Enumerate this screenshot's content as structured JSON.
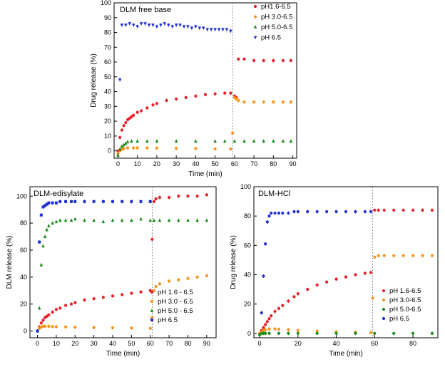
{
  "chart_data": [
    {
      "type": "scatter",
      "title": "DLM free base",
      "xlabel": "Time (min)",
      "ylabel": "Drug release (%)",
      "xlim": [
        -2,
        92
      ],
      "ylim": [
        -5,
        100
      ],
      "xticks": [
        0,
        10,
        20,
        30,
        40,
        50,
        60,
        70,
        80,
        90
      ],
      "yticks": [
        0,
        10,
        20,
        30,
        40,
        50,
        60,
        70,
        80,
        90,
        100
      ],
      "xtick_labels": [
        "0",
        "10",
        "20",
        "30",
        "40",
        "50",
        "60",
        "70",
        "80",
        "90"
      ],
      "ytick_labels": [
        "0",
        "10",
        "20",
        "30",
        "40",
        "50",
        "60",
        "70",
        "80",
        "90",
        "100"
      ],
      "vline": 59,
      "legend_position": "top-right",
      "series": [
        {
          "name": "pH1.6-6.5",
          "color": "#e8202a",
          "marker": "circle",
          "x": [
            0,
            1,
            2,
            3,
            4,
            5,
            6,
            7,
            8,
            10,
            12,
            15,
            18,
            20,
            25,
            30,
            35,
            40,
            45,
            50,
            55,
            58,
            60,
            61,
            62,
            65,
            70,
            75,
            80,
            85,
            89
          ],
          "y": [
            0,
            9,
            14,
            17,
            19,
            21,
            22,
            23,
            24,
            26,
            27,
            29,
            31,
            32,
            34,
            35,
            36,
            37,
            38,
            38.5,
            39,
            39,
            37,
            36,
            62,
            62,
            61,
            61,
            61,
            61,
            61
          ]
        },
        {
          "name": "pH 3.0-6.5",
          "color": "#f7941d",
          "marker": "circle",
          "x": [
            0,
            1,
            2,
            3,
            5,
            8,
            10,
            15,
            20,
            30,
            40,
            50,
            58,
            59,
            60,
            61,
            62,
            65,
            70,
            75,
            80,
            85,
            89
          ],
          "y": [
            -2,
            0,
            1,
            1.5,
            2,
            2,
            2,
            2,
            1.8,
            1.6,
            1.5,
            1.3,
            1.2,
            12,
            36,
            35,
            34,
            33,
            33,
            33,
            33,
            33,
            33
          ]
        },
        {
          "name": "pH 5.0-6.5",
          "color": "#1a8a1a",
          "marker": "triangle",
          "x": [
            0,
            1,
            2,
            3,
            4,
            5,
            7,
            10,
            15,
            20,
            30,
            40,
            50,
            55,
            60,
            65,
            70,
            75,
            80,
            85,
            89
          ],
          "y": [
            -3,
            1,
            3,
            4,
            5,
            6,
            6.5,
            6.5,
            6.5,
            6.5,
            6.5,
            6.5,
            6.5,
            6.5,
            6.5,
            6.5,
            6.5,
            6.5,
            6.5,
            6.5,
            6.5
          ]
        },
        {
          "name": "pH 6.5",
          "color": "#1f2fd6",
          "marker": "triangle-down",
          "x": [
            1,
            2,
            4,
            6,
            8,
            10,
            12,
            14,
            16,
            18,
            20,
            22,
            24,
            26,
            28,
            30,
            32,
            34,
            36,
            38,
            40,
            42,
            44,
            46,
            48,
            50,
            52,
            54,
            56,
            58
          ],
          "y": [
            48,
            85,
            85,
            86,
            85,
            84,
            86,
            86,
            85,
            85,
            84,
            85,
            86,
            85,
            84,
            85,
            85,
            84,
            84,
            83,
            84,
            83,
            83,
            82,
            82,
            82,
            82,
            82,
            82,
            81
          ]
        }
      ]
    },
    {
      "type": "scatter",
      "title": "DLM-edisylate",
      "xlabel": "Time (min)",
      "ylabel": "DLM release (%)",
      "xlim": [
        -4,
        95
      ],
      "ylim": [
        -5,
        107
      ],
      "xticks": [
        0,
        10,
        20,
        30,
        40,
        50,
        60,
        70,
        80,
        90
      ],
      "yticks": [
        0,
        20,
        40,
        60,
        80,
        100
      ],
      "xtick_labels": [
        "0",
        "10",
        "20",
        "30",
        "40",
        "50",
        "60",
        "70",
        "80",
        "90"
      ],
      "ytick_labels": [
        "0",
        "20",
        "40",
        "60",
        "80",
        "100"
      ],
      "vline": 61,
      "legend_position": "bottom-right",
      "series": [
        {
          "name": "pH 1.6 - 6.5",
          "color": "#e8202a",
          "marker": "circle",
          "x": [
            0,
            1,
            2,
            3,
            4,
            5,
            6,
            8,
            10,
            12,
            15,
            18,
            20,
            25,
            30,
            35,
            40,
            45,
            50,
            55,
            60,
            61,
            62,
            63,
            65,
            70,
            75,
            80,
            85,
            90
          ],
          "y": [
            0,
            3,
            6,
            8,
            10,
            11,
            12,
            14,
            16,
            17,
            19,
            20,
            21,
            23,
            24,
            25,
            26,
            27,
            28,
            29,
            30,
            68,
            96,
            98,
            99,
            99,
            100,
            100,
            100,
            101
          ]
        },
        {
          "name": "pH 3.0 - 6.5",
          "color": "#f7941d",
          "marker": "circle",
          "x": [
            0,
            1,
            2,
            3,
            4,
            6,
            8,
            10,
            15,
            20,
            30,
            40,
            50,
            60,
            61,
            62,
            63,
            65,
            70,
            75,
            80,
            85,
            90
          ],
          "y": [
            0,
            2,
            3,
            3.5,
            3.5,
            3.5,
            3.3,
            3.2,
            3,
            2.8,
            2.6,
            2.4,
            2.2,
            2,
            10,
            30,
            33,
            35,
            37,
            38,
            39,
            40,
            41
          ]
        },
        {
          "name": "pH 5.0 - 6.5",
          "color": "#1a8a1a",
          "marker": "triangle",
          "x": [
            0,
            1,
            2,
            3,
            4,
            5,
            6,
            8,
            10,
            12,
            15,
            18,
            20,
            25,
            30,
            35,
            40,
            45,
            50,
            55,
            60,
            62,
            65,
            70,
            75,
            80,
            85,
            90
          ],
          "y": [
            0,
            17,
            49,
            63,
            70,
            75,
            78,
            80,
            81,
            82,
            82,
            82,
            83,
            82,
            82,
            81,
            82,
            82,
            82,
            83,
            82,
            82,
            82,
            82,
            82,
            82,
            82,
            82
          ]
        },
        {
          "name": "pH 6.5",
          "color": "#1f2fd6",
          "marker": "square",
          "x": [
            0,
            1,
            2,
            3,
            4,
            5,
            6,
            8,
            10,
            12,
            15,
            18,
            20,
            25,
            30,
            35,
            40,
            45,
            50,
            55,
            60
          ],
          "y": [
            0,
            66,
            86,
            92,
            93,
            94,
            95,
            95,
            95,
            96,
            96,
            96,
            96,
            96,
            96,
            96,
            96,
            96,
            96,
            96,
            96
          ]
        }
      ]
    },
    {
      "type": "scatter",
      "title": "DLM-HCl",
      "xlabel": "Time (min)",
      "ylabel": "Drug release (%)",
      "xlim": [
        -3,
        93
      ],
      "ylim": [
        -3,
        100
      ],
      "xticks": [
        0,
        20,
        40,
        60,
        80
      ],
      "yticks": [
        0,
        20,
        40,
        60,
        80,
        100
      ],
      "xtick_labels": [
        "0",
        "20",
        "40",
        "60",
        "80"
      ],
      "ytick_labels": [
        "0",
        "20",
        "40",
        "60",
        "80",
        "100"
      ],
      "vline": 59,
      "legend_position": "bottom-right",
      "series": [
        {
          "name": "pH 1.6-6.5",
          "color": "#e8202a",
          "marker": "circle",
          "x": [
            0,
            1,
            2,
            3,
            4,
            5,
            6,
            8,
            10,
            12,
            15,
            18,
            20,
            25,
            30,
            35,
            40,
            45,
            50,
            55,
            58,
            60,
            62,
            65,
            70,
            75,
            80,
            85,
            90
          ],
          "y": [
            0,
            2,
            4,
            6,
            8,
            10,
            12,
            15,
            17,
            19,
            22,
            25,
            27,
            30,
            33,
            35,
            37,
            38.5,
            40,
            41,
            41.5,
            84,
            84,
            84,
            84,
            84,
            84,
            84,
            84
          ]
        },
        {
          "name": "pH 3.0-6.5",
          "color": "#f7941d",
          "marker": "circle",
          "x": [
            0,
            1,
            2,
            3,
            5,
            8,
            10,
            15,
            20,
            30,
            40,
            50,
            58,
            59,
            60,
            62,
            65,
            70,
            75,
            80,
            85,
            90
          ],
          "y": [
            0,
            1,
            2,
            2.5,
            3,
            3,
            2.8,
            2.5,
            2,
            1.5,
            1,
            0.8,
            0.5,
            24,
            52,
            53,
            53,
            53,
            53,
            53,
            53,
            53
          ]
        },
        {
          "name": "pH 5.0-6.5",
          "color": "#1a8a1a",
          "marker": "circle",
          "x": [
            0,
            1,
            2,
            3,
            5,
            10,
            15,
            20,
            30,
            40,
            50,
            60,
            70,
            80,
            90
          ],
          "y": [
            -1,
            0,
            0,
            0,
            0,
            0,
            0,
            0,
            0,
            0,
            0,
            0,
            0,
            0,
            0
          ]
        },
        {
          "name": "pH 6.5",
          "color": "#1f2fd6",
          "marker": "circle",
          "x": [
            1,
            2,
            3,
            4,
            5,
            6,
            8,
            10,
            12,
            15,
            18,
            20,
            25,
            30,
            35,
            40,
            45,
            50,
            55,
            58
          ],
          "y": [
            14,
            39,
            61,
            76,
            80,
            82,
            82,
            82,
            82,
            82,
            83,
            83,
            83,
            83,
            83,
            83,
            83,
            83,
            83,
            83
          ]
        }
      ]
    }
  ]
}
